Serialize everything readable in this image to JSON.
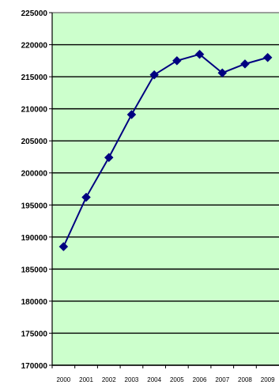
{
  "chart_data": {
    "type": "line",
    "title": "",
    "xlabel": "",
    "ylabel": "",
    "x": [
      "2000",
      "2001",
      "2002",
      "2003",
      "2004",
      "2005",
      "2006",
      "2007",
      "2008",
      "2009"
    ],
    "series": [
      {
        "values": [
          188500,
          196200,
          202400,
          209100,
          215300,
          217500,
          218500,
          215600,
          217000,
          218000
        ]
      }
    ],
    "ylim": [
      170000,
      225000
    ],
    "yticks": [
      "225000",
      "220000",
      "215000",
      "210000",
      "205000",
      "200000",
      "195000",
      "190000",
      "185000",
      "180000",
      "175000",
      "170000"
    ],
    "grid": true,
    "colors": {
      "plot_background": "#ccffcc",
      "line": "#000080",
      "marker": "#000080",
      "gridline": "#000000"
    }
  }
}
